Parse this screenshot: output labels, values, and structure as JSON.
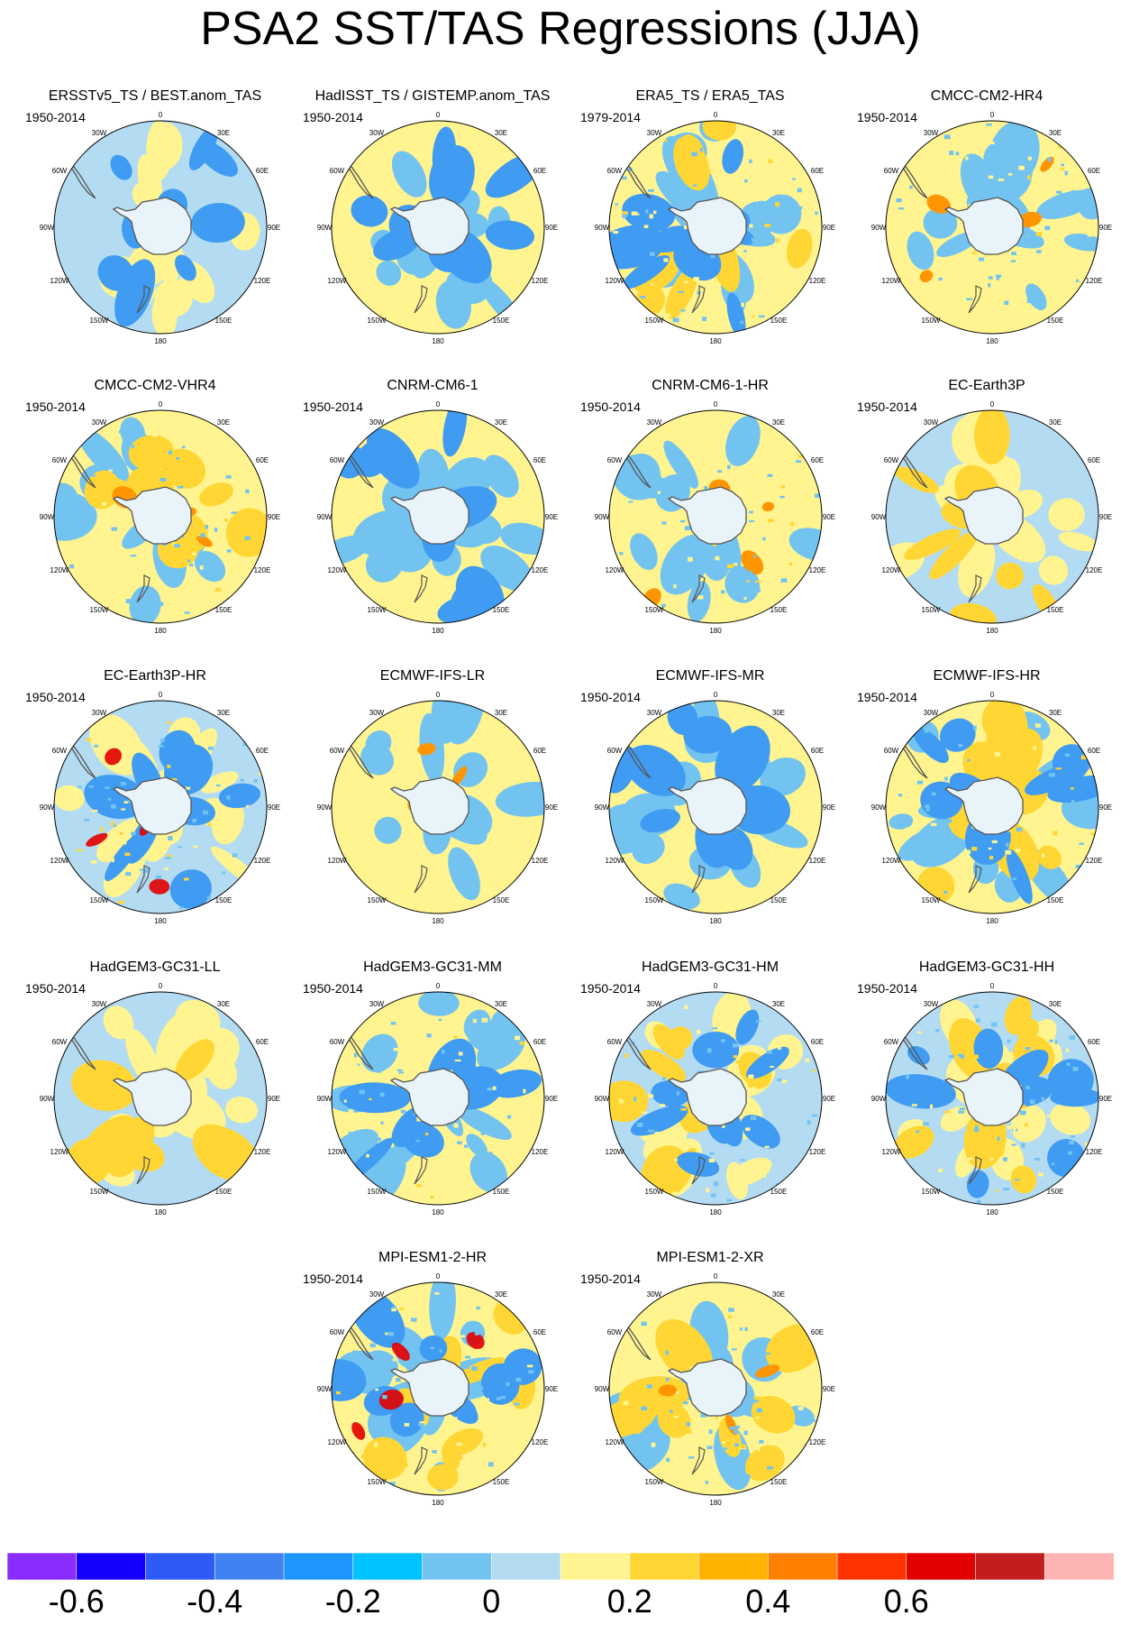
{
  "title": "PSA2 SST/TAS Regressions (JJA)",
  "map_labels": {
    "top": "0",
    "bottom": "180",
    "upper_left": "30W",
    "upper_right": "30E",
    "mid_left_upper": "60W",
    "mid_right_upper": "60E",
    "left": "90W",
    "right": "90E",
    "mid_left_lower": "120W",
    "mid_right_lower": "120E",
    "lower_left": "150W",
    "lower_right": "150E"
  },
  "palette": {
    "ocean_light_blue": "#b3dcf2",
    "blue": "#73c3f1",
    "yellow": "#fff48f",
    "gold": "#ffd633",
    "orange": "#ff9500",
    "red": "#e30000",
    "coast": "#555555"
  },
  "panels": [
    {
      "title": "ERSSTv5_TS / BEST.anom_TAS",
      "period": "1950-2014",
      "base": "blue",
      "blobs": "yellow,deep_blue"
    },
    {
      "title": "HadISST_TS / GISTEMP.anom_TAS",
      "period": "1950-2014",
      "base": "yellow",
      "blobs": "blue,deep_blue"
    },
    {
      "title": "ERA5_TS / ERA5_TAS",
      "period": "1979-2014",
      "base": "yellow",
      "blobs": "blue,gold,deep_blue"
    },
    {
      "title": "CMCC-CM2-HR4",
      "period": "1950-2014",
      "base": "yellow",
      "blobs": "blue,orange"
    },
    {
      "title": "CMCC-CM2-VHR4",
      "period": "1950-2014",
      "base": "yellow",
      "blobs": "blue,gold,orange"
    },
    {
      "title": "CNRM-CM6-1",
      "period": "1950-2014",
      "base": "yellow",
      "blobs": "blue,deep_blue"
    },
    {
      "title": "CNRM-CM6-1-HR",
      "period": "1950-2014",
      "base": "yellow",
      "blobs": "blue,orange"
    },
    {
      "title": "EC-Earth3P",
      "period": "1950-2014",
      "base": "blue",
      "blobs": "yellow,gold"
    },
    {
      "title": "EC-Earth3P-HR",
      "period": "1950-2014",
      "base": "blue",
      "blobs": "yellow,deep_blue,red"
    },
    {
      "title": "ECMWF-IFS-LR",
      "period": "",
      "base": "yellow",
      "blobs": "blue,orange"
    },
    {
      "title": "ECMWF-IFS-MR",
      "period": "1950-2014",
      "base": "yellow",
      "blobs": "blue,deep_blue"
    },
    {
      "title": "ECMWF-IFS-HR",
      "period": "1950-2014",
      "base": "yellow",
      "blobs": "blue,gold,deep_blue"
    },
    {
      "title": "HadGEM3-GC31-LL",
      "period": "1950-2014",
      "base": "blue",
      "blobs": "yellow,gold"
    },
    {
      "title": "HadGEM3-GC31-MM",
      "period": "1950-2014",
      "base": "yellow",
      "blobs": "blue,deep_blue"
    },
    {
      "title": "HadGEM3-GC31-HM",
      "period": "1950-2014",
      "base": "blue",
      "blobs": "yellow,gold,deep_blue"
    },
    {
      "title": "HadGEM3-GC31-HH",
      "period": "1950-2014",
      "base": "blue",
      "blobs": "yellow,gold,deep_blue"
    },
    {
      "title": "MPI-ESM1-2-HR",
      "period": "1950-2014",
      "base": "yellow",
      "blobs": "blue,gold,deep_blue,red"
    },
    {
      "title": "MPI-ESM1-2-XR",
      "period": "1950-2014",
      "base": "yellow",
      "blobs": "blue,gold,orange"
    }
  ],
  "colorbar": {
    "colors": [
      "#8a2bff",
      "#1400ff",
      "#2e5bf5",
      "#3f83f2",
      "#1e96ff",
      "#00c2ff",
      "#73c3f1",
      "#b3dcf2",
      "#fff48f",
      "#ffd633",
      "#ffb300",
      "#ff7f00",
      "#ff3300",
      "#e30000",
      "#c31e1e",
      "#ffb4b4"
    ],
    "ticks": [
      "-0.6",
      "-0.4",
      "-0.2",
      "0",
      "0.2",
      "0.4",
      "0.6"
    ]
  }
}
